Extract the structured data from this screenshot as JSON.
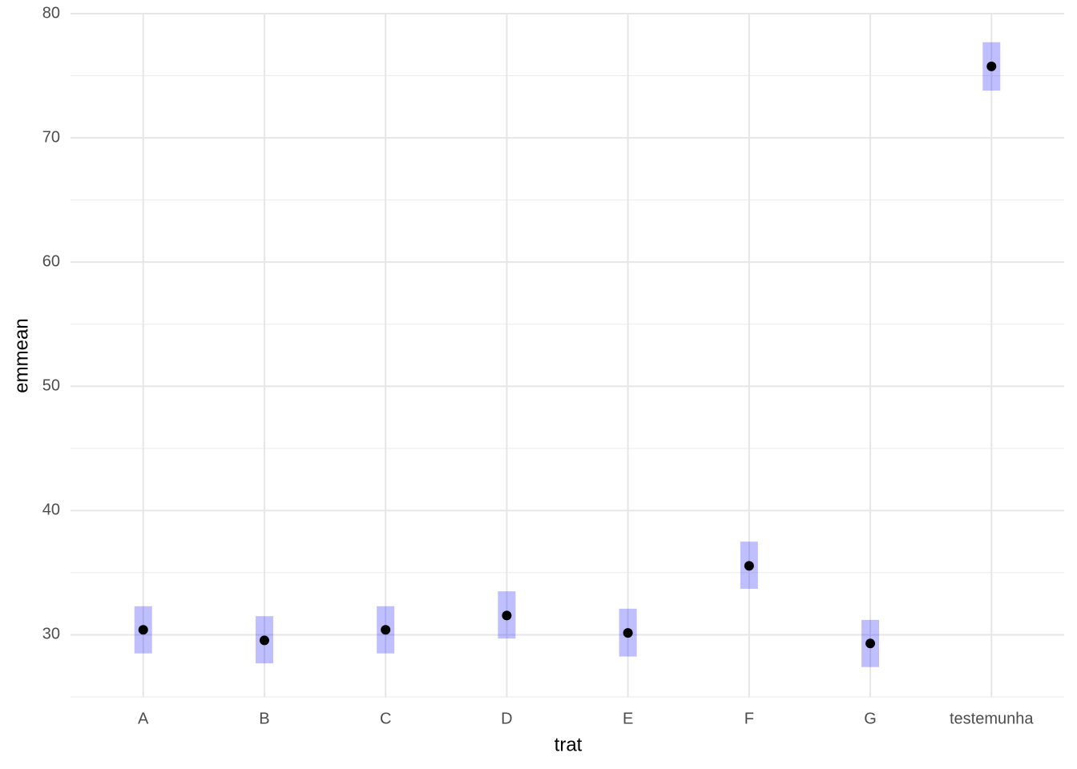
{
  "chart_data": {
    "type": "pointrange",
    "x_label": "trat",
    "y_label": "emmean",
    "categories": [
      "A",
      "B",
      "C",
      "D",
      "E",
      "F",
      "G",
      "testemunha"
    ],
    "values": [
      30.4,
      29.55,
      30.4,
      31.55,
      30.15,
      35.55,
      29.3,
      75.75
    ],
    "lower": [
      28.5,
      27.7,
      28.5,
      29.7,
      28.25,
      33.7,
      27.4,
      73.8
    ],
    "upper": [
      32.3,
      31.5,
      32.3,
      33.5,
      32.1,
      37.5,
      31.2,
      77.7
    ],
    "point_color": "#000000",
    "range_color": "rgba(0,0,255,0.25)",
    "ylim": [
      25,
      80
    ],
    "yticks": [
      30,
      40,
      50,
      60,
      70,
      80
    ],
    "minor_yticks": [
      25,
      35,
      45,
      55,
      65,
      75
    ],
    "grid": true
  }
}
